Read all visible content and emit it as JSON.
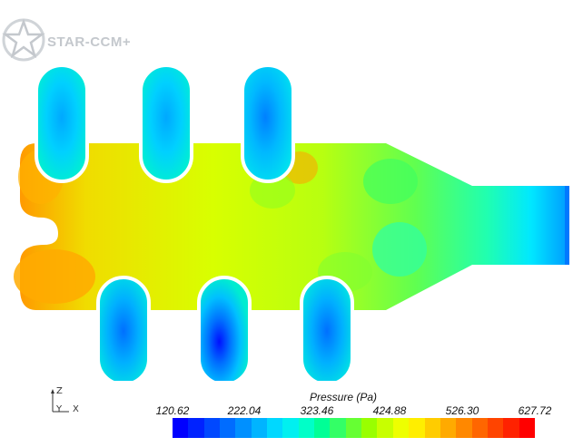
{
  "app": {
    "logo_text": "STAR-CCM+"
  },
  "axes": {
    "z": "Z",
    "y": "Y",
    "x": "X"
  },
  "legend": {
    "title": "Pressure (Pa)",
    "ticks": [
      "120.62",
      "222.04",
      "323.46",
      "424.88",
      "526.30",
      "627.72"
    ],
    "colors": [
      "#0000ff",
      "#0022ff",
      "#0048ff",
      "#006cff",
      "#0090ff",
      "#00b4ff",
      "#00d8ff",
      "#00f0f0",
      "#00ffc8",
      "#00ff96",
      "#33ff66",
      "#66ff33",
      "#99ff00",
      "#c8ff00",
      "#eeff00",
      "#ffee00",
      "#ffcc00",
      "#ffaa00",
      "#ff8800",
      "#ff6600",
      "#ff4400",
      "#ff2200",
      "#ff0000"
    ]
  }
}
